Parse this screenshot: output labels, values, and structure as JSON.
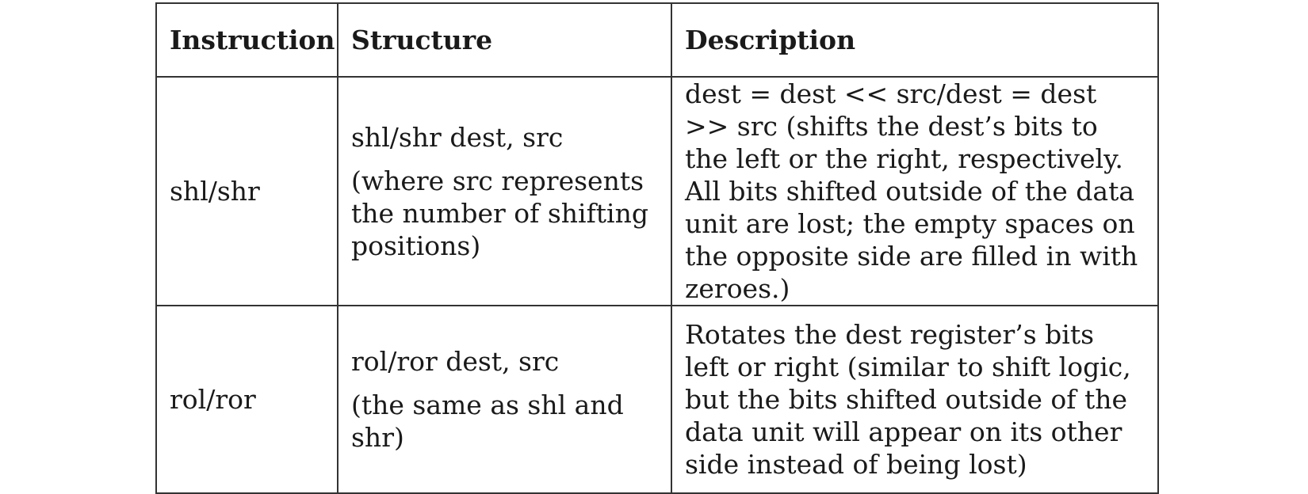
{
  "table": {
    "headers": [
      "Instruction",
      "Structure",
      "Description"
    ],
    "rows": [
      {
        "instruction": "shl/shr",
        "structure": "shl/shr dest, src",
        "structure_note": "(where src represents the number of shifting positions)",
        "description": "dest = dest << src/dest = dest >> src (shifts the dest’s bits to the left or the right, respectively. All bits shifted outside of the data unit are lost; the empty spaces on the opposite side are filled in with zeroes.)"
      },
      {
        "instruction": "rol/ror",
        "structure": "rol/ror dest, src",
        "structure_note": "(the same as shl and shr)",
        "description": "Rotates the dest register’s bits left or right (similar to shift logic, but the bits shifted outside of the data unit will appear on its other side instead of being lost)"
      }
    ]
  }
}
